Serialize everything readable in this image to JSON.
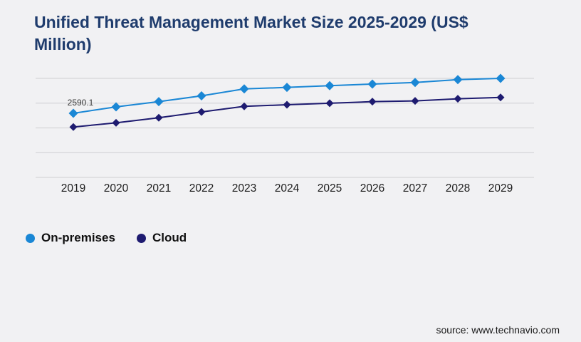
{
  "title": {
    "full": "Unified Threat Management Market Size 2025-2029 (US$ Million)",
    "lines": [
      "Unified Threat Management Market Size 2025-2029 (US$",
      "Million)"
    ]
  },
  "legend": {
    "items": [
      {
        "label": "On-premises",
        "color": "#1a87d5"
      },
      {
        "label": "Cloud",
        "color": "#1e1b70"
      }
    ]
  },
  "source": {
    "text": "source: www.technavio.com"
  },
  "colors": {
    "background": "#f1f1f3",
    "title": "#1f3c6d",
    "gridline": "#d5d5d8",
    "tick_label": "#1c1c1c",
    "data_label": "#3a3a3a"
  },
  "chart_data": {
    "type": "line",
    "title": "Unified Threat Management Market Size 2025-2029 (US$ Million)",
    "categories": [
      "2019",
      "2020",
      "2021",
      "2022",
      "2023",
      "2024",
      "2025",
      "2026",
      "2027",
      "2028",
      "2029"
    ],
    "series": [
      {
        "name": "On-premises",
        "color": "#1a87d5",
        "marker": "diamond",
        "values": [
          2590.1,
          2850,
          3060,
          3295,
          3575,
          3635,
          3705,
          3770,
          3835,
          3950,
          4000
        ]
      },
      {
        "name": "Cloud",
        "color": "#1e1b70",
        "marker": "diamond",
        "values": [
          2035,
          2205,
          2410,
          2645,
          2870,
          2935,
          2995,
          3060,
          3090,
          3175,
          3230
        ]
      }
    ],
    "ylim": [
      0,
      4000
    ],
    "grid_interval": 1000,
    "grid": "horizontal-only",
    "y_axis_labels": "none",
    "legend_position": "bottom-left",
    "data_label": {
      "series": "On-premises",
      "category": "2019",
      "text": "2590.1"
    }
  }
}
